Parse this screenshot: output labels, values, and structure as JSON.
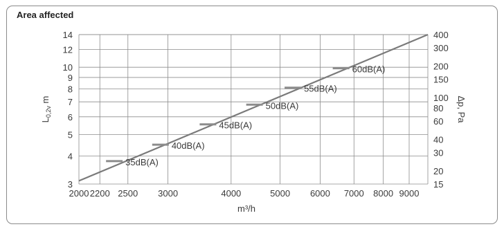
{
  "chart_data": {
    "type": "line",
    "title": "Area affected",
    "xlabel": "m³/h",
    "ylabel_left": "L0,2v m",
    "ylabel_left_main": "L",
    "ylabel_left_sub": "0,2v",
    "ylabel_left_unit": "m",
    "ylabel_right": "Δp, Pa",
    "x_scale": "log",
    "y_scale": "log",
    "xlim": [
      2000,
      9800
    ],
    "ylim_left": [
      3,
      14
    ],
    "ylim_right": [
      15,
      400
    ],
    "grid": true,
    "x_ticks": [
      2000,
      2200,
      2500,
      3000,
      4000,
      5000,
      6000,
      7000,
      8000,
      9000
    ],
    "x_tick_labels": [
      "2000",
      "2200",
      "2500",
      "3000",
      "4000",
      "5000",
      "6000",
      "7000",
      "8000",
      "9000"
    ],
    "y_left_ticks": [
      3,
      4,
      5,
      6,
      7,
      8,
      9,
      10,
      12,
      14
    ],
    "y_left_tick_labels": [
      "3",
      "4",
      "5",
      "6",
      "7",
      "8",
      "9",
      "10",
      "12",
      "14"
    ],
    "y_right_ticks": [
      15,
      20,
      30,
      40,
      60,
      80,
      100,
      150,
      200,
      300,
      400
    ],
    "y_right_tick_labels": [
      "15",
      "20",
      "30",
      "40",
      "60",
      "80",
      "100",
      "150",
      "200",
      "300",
      "400"
    ],
    "series": [
      {
        "x": [
          2000,
          9800
        ],
        "y": [
          3.1,
          14.0
        ]
      }
    ],
    "annotations": [
      {
        "label": "35dB(A)",
        "x": 2350,
        "y": 3.8
      },
      {
        "label": "40dB(A)",
        "x": 2900,
        "y": 4.5
      },
      {
        "label": "45dB(A)",
        "x": 3600,
        "y": 5.55
      },
      {
        "label": "50dB(A)",
        "x": 4450,
        "y": 6.8
      },
      {
        "label": "55dB(A)",
        "x": 5300,
        "y": 8.1
      },
      {
        "label": "60dB(A)",
        "x": 6600,
        "y": 9.9
      }
    ]
  },
  "colors": {
    "line": "#7a7a7a",
    "grid": "#8c8c8c",
    "marker": "#8c8c8c",
    "text": "#3a3a3a"
  }
}
